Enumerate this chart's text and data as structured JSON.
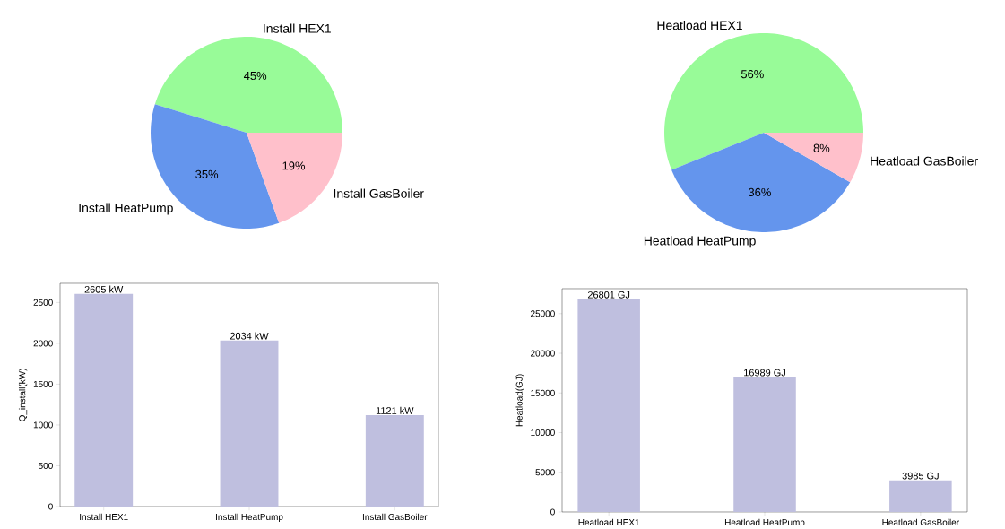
{
  "chart_data": [
    {
      "type": "pie",
      "categories": [
        "Install HEX1",
        "Install HeatPump",
        "Install GasBoiler"
      ],
      "values": [
        45.2,
        35.3,
        19.5
      ],
      "value_labels": [
        "45%",
        "35%",
        "19%"
      ],
      "colors": [
        "#98fb98",
        "#6495ed",
        "#ffc0cb"
      ]
    },
    {
      "type": "pie",
      "categories": [
        "Heatload HEX1",
        "Heatload HeatPump",
        "Heatload GasBoiler"
      ],
      "values": [
        56.1,
        35.6,
        8.3
      ],
      "value_labels": [
        "56%",
        "36%",
        "8%"
      ],
      "colors": [
        "#98fb98",
        "#6495ed",
        "#ffc0cb"
      ]
    },
    {
      "type": "bar",
      "categories": [
        "Install HEX1",
        "Install HeatPump",
        "Install GasBoiler"
      ],
      "values": [
        2605,
        2034,
        1121
      ],
      "value_labels": [
        "2605 kW",
        "2034 kW",
        "1121 kW"
      ],
      "color": "#bfbfdf",
      "ylabel": "Q_install(kW)",
      "ylim": [
        0,
        2735
      ],
      "yticks": [
        0,
        500,
        1000,
        1500,
        2000,
        2500
      ]
    },
    {
      "type": "bar",
      "categories": [
        "Heatload HEX1",
        "Heatload HeatPump",
        "Heatload GasBoiler"
      ],
      "values": [
        26801,
        16989,
        3985
      ],
      "value_labels": [
        "26801 GJ",
        "16989 GJ",
        "3985 GJ"
      ],
      "color": "#bfbfdf",
      "ylabel": "Heatload(GJ)",
      "ylim": [
        0,
        28141
      ],
      "yticks": [
        0,
        5000,
        10000,
        15000,
        20000,
        25000
      ]
    }
  ]
}
